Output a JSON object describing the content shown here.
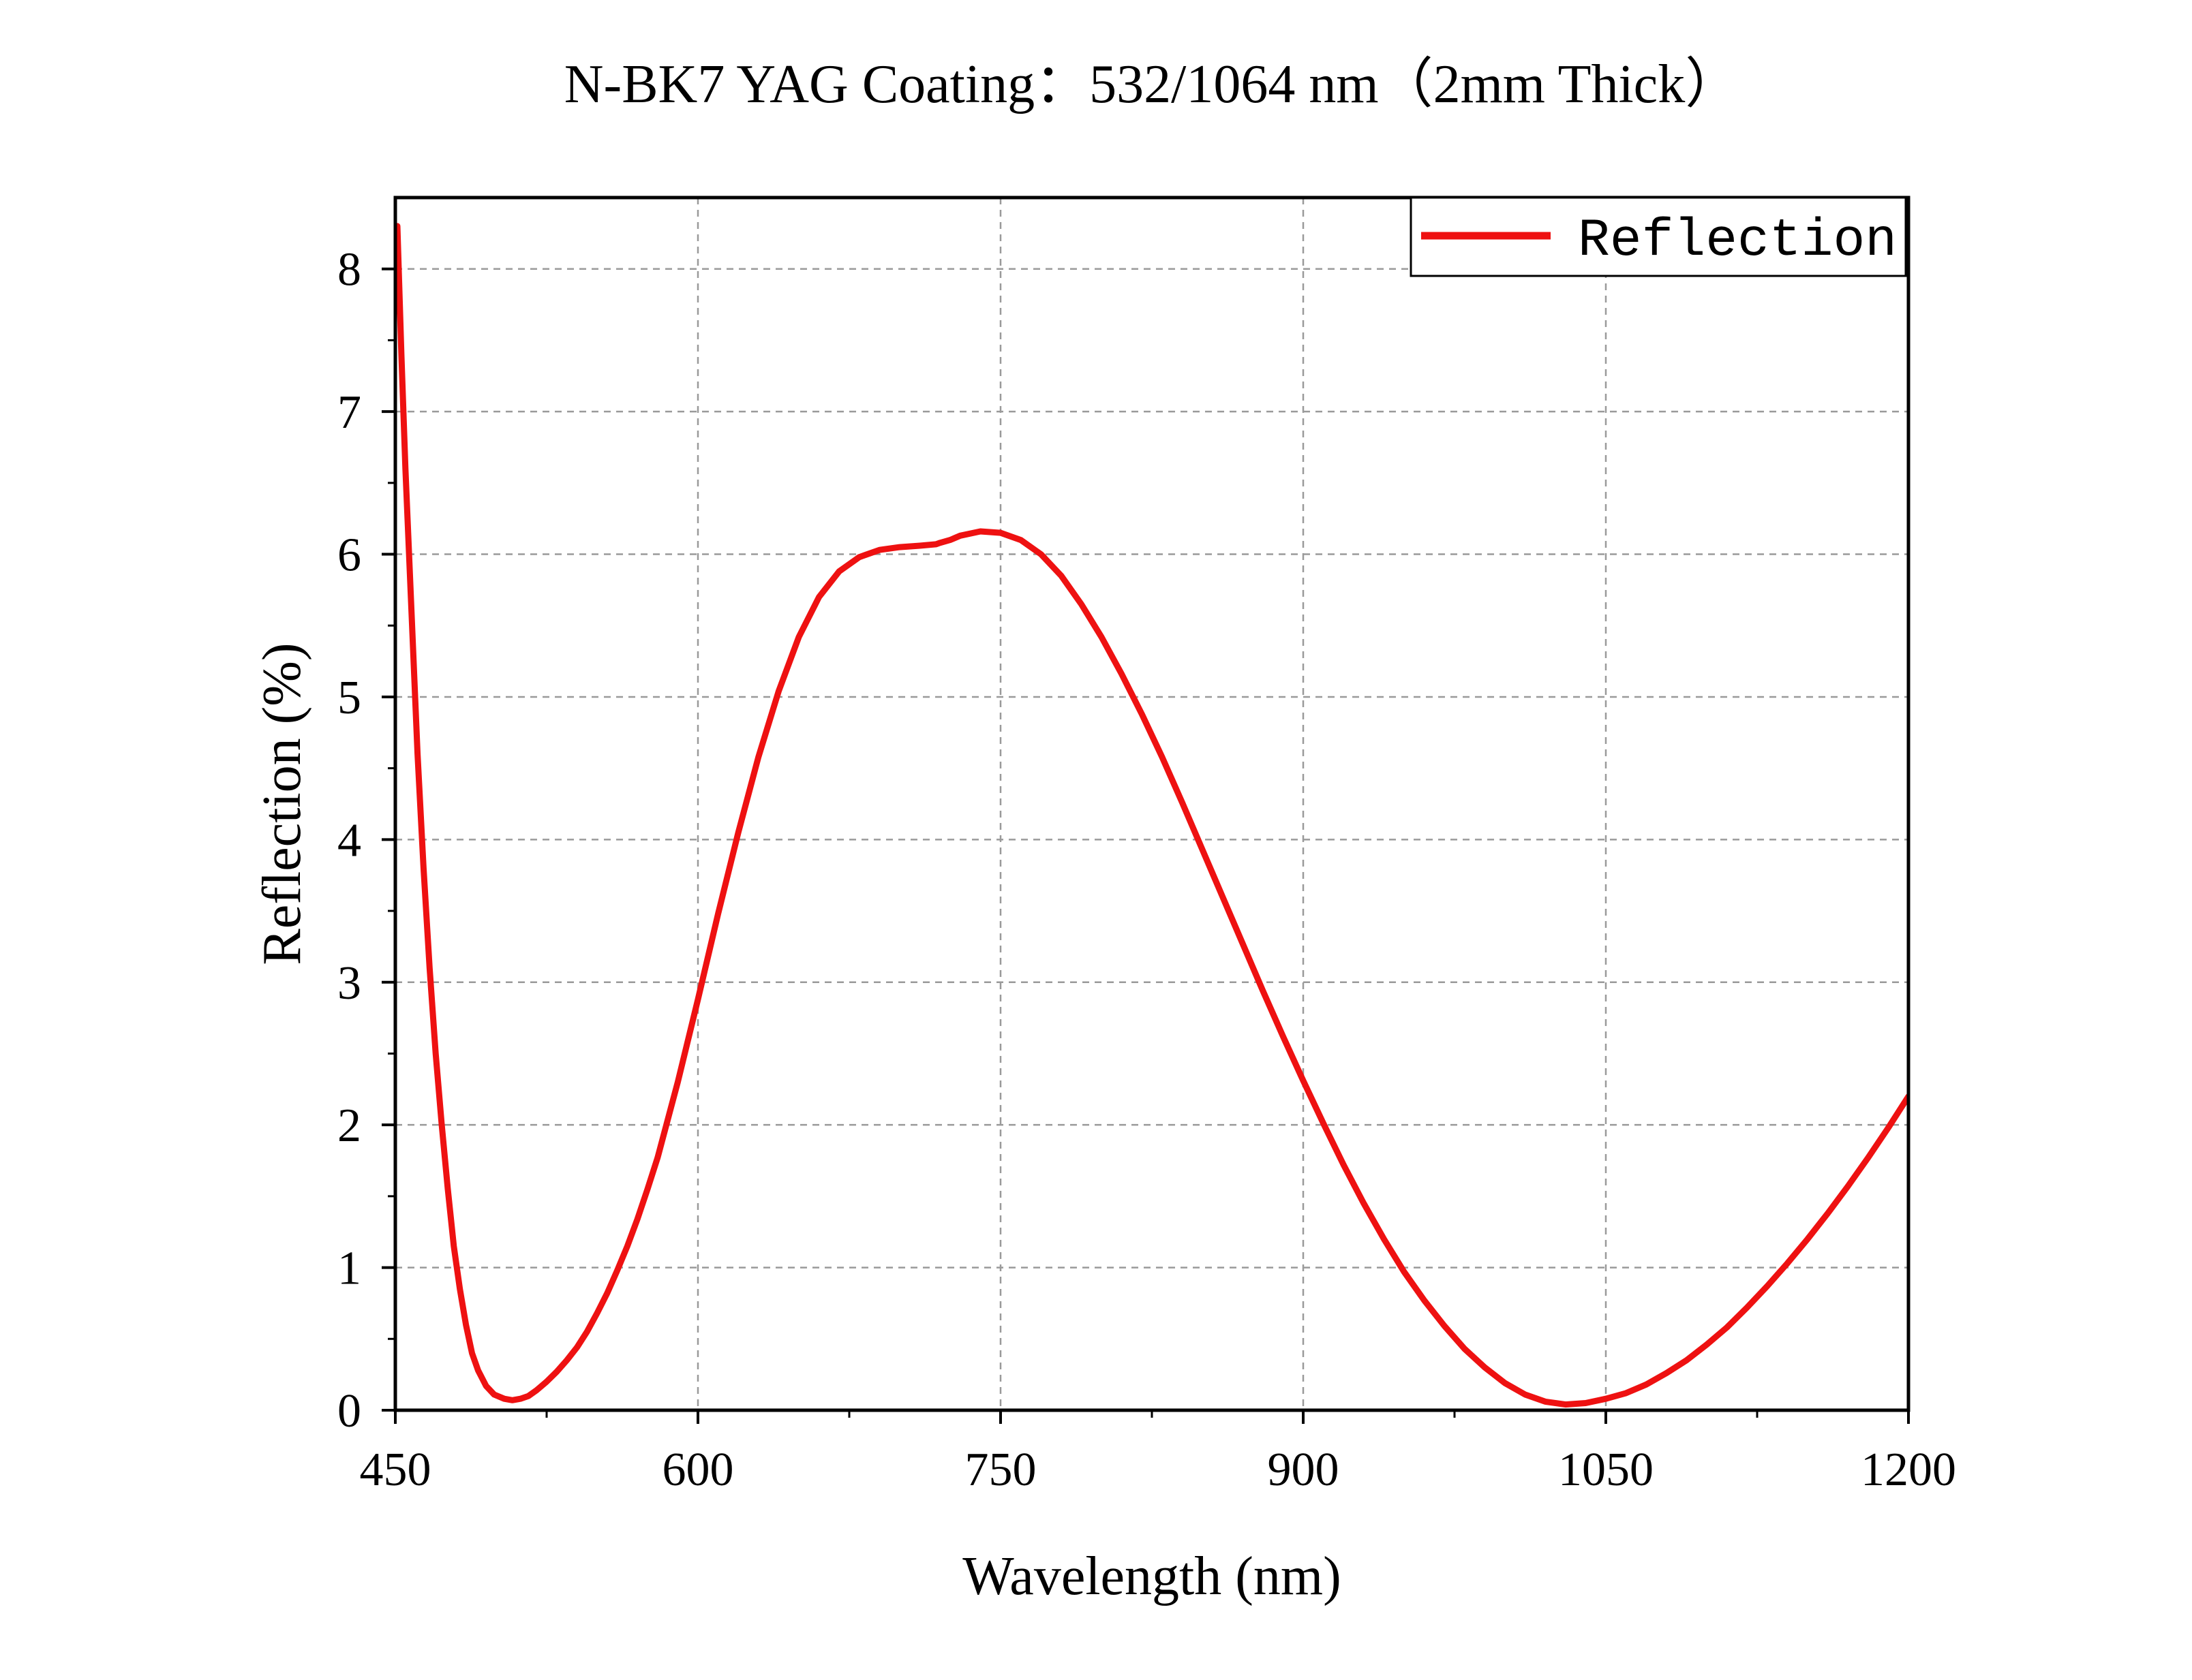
{
  "chart_data": {
    "type": "line",
    "title": "N-BK7 YAG Coating：532/1064 nm（2mm Thick）",
    "xlabel": "Wavelength (nm)",
    "ylabel": "Reflection (%)",
    "xlim": [
      450,
      1200
    ],
    "ylim": [
      0,
      8.5
    ],
    "xticks": [
      450,
      600,
      750,
      900,
      1050,
      1200
    ],
    "yticks": [
      0,
      1,
      2,
      3,
      4,
      5,
      6,
      7,
      8
    ],
    "grid": true,
    "legend_position": "top-right",
    "series": [
      {
        "name": "Reflection",
        "color": "#ee1111",
        "x": [
          451,
          453,
          455,
          458,
          461,
          464,
          467,
          470,
          473,
          476,
          479,
          482,
          485,
          488,
          491,
          495,
          499,
          504,
          508,
          512,
          516,
          520,
          525,
          530,
          535,
          540,
          545,
          550,
          555,
          560,
          565,
          570,
          575,
          580,
          590,
          600,
          610,
          620,
          630,
          640,
          650,
          660,
          670,
          680,
          690,
          700,
          710,
          718,
          720,
          725,
          730,
          740,
          750,
          760,
          770,
          780,
          790,
          800,
          810,
          820,
          830,
          840,
          850,
          860,
          870,
          880,
          890,
          900,
          910,
          920,
          930,
          940,
          950,
          960,
          970,
          980,
          990,
          1000,
          1010,
          1020,
          1030,
          1040,
          1050,
          1060,
          1070,
          1080,
          1090,
          1100,
          1110,
          1120,
          1130,
          1140,
          1150,
          1160,
          1170,
          1180,
          1190,
          1200
        ],
        "y": [
          8.3,
          7.4,
          6.6,
          5.6,
          4.6,
          3.8,
          3.1,
          2.5,
          2.0,
          1.55,
          1.15,
          0.85,
          0.6,
          0.4,
          0.28,
          0.17,
          0.11,
          0.08,
          0.07,
          0.08,
          0.1,
          0.14,
          0.2,
          0.27,
          0.35,
          0.44,
          0.55,
          0.68,
          0.82,
          0.98,
          1.15,
          1.34,
          1.55,
          1.77,
          2.3,
          2.88,
          3.48,
          4.05,
          4.58,
          5.04,
          5.42,
          5.7,
          5.88,
          5.98,
          6.03,
          6.05,
          6.06,
          6.07,
          6.08,
          6.1,
          6.13,
          6.16,
          6.15,
          6.1,
          6.0,
          5.85,
          5.65,
          5.42,
          5.16,
          4.88,
          4.58,
          4.26,
          3.93,
          3.6,
          3.27,
          2.94,
          2.62,
          2.31,
          2.01,
          1.72,
          1.45,
          1.2,
          0.97,
          0.77,
          0.59,
          0.43,
          0.3,
          0.19,
          0.11,
          0.06,
          0.04,
          0.05,
          0.08,
          0.12,
          0.18,
          0.26,
          0.35,
          0.46,
          0.58,
          0.72,
          0.87,
          1.03,
          1.2,
          1.38,
          1.57,
          1.77,
          1.98,
          2.2
        ]
      }
    ]
  }
}
